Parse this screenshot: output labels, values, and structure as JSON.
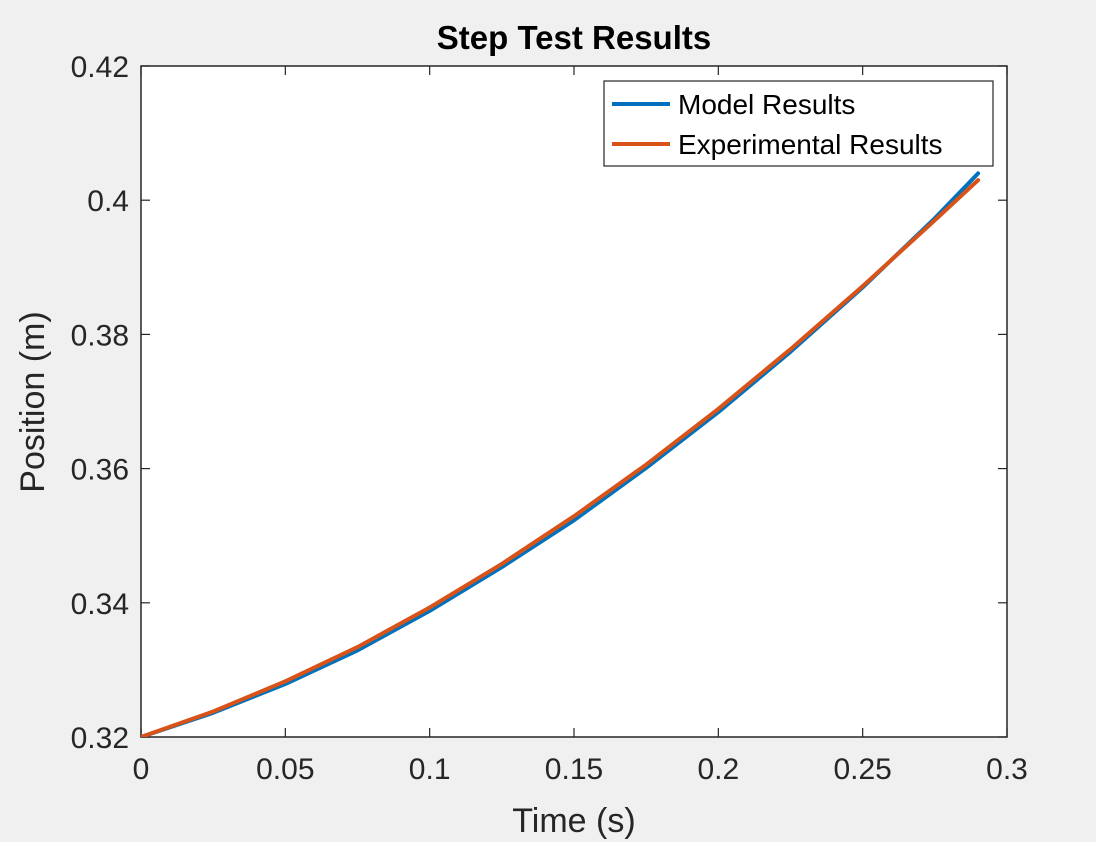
{
  "chart_data": {
    "type": "line",
    "title": "Step Test Results",
    "xlabel": "Time (s)",
    "ylabel": "Position (m)",
    "xlim": [
      0,
      0.3
    ],
    "ylim": [
      0.32,
      0.42
    ],
    "xticks": [
      0,
      0.05,
      0.1,
      0.15,
      0.2,
      0.25,
      0.3
    ],
    "yticks": [
      0.32,
      0.34,
      0.36,
      0.38,
      0.4,
      0.42
    ],
    "xtick_labels": [
      "0",
      "0.05",
      "0.1",
      "0.15",
      "0.2",
      "0.25",
      "0.3"
    ],
    "ytick_labels": [
      "0.32",
      "0.34",
      "0.36",
      "0.38",
      "0.4",
      "0.42"
    ],
    "grid": false,
    "legend_position": "top-right",
    "series": [
      {
        "name": "Model Results",
        "color": "#0072bd",
        "x": [
          0,
          0.025,
          0.05,
          0.075,
          0.1,
          0.125,
          0.15,
          0.175,
          0.2,
          0.225,
          0.25,
          0.275,
          0.29
        ],
        "y": [
          0.32,
          0.3236,
          0.3279,
          0.3329,
          0.3388,
          0.3453,
          0.3523,
          0.3601,
          0.3684,
          0.3774,
          0.387,
          0.3973,
          0.404
        ]
      },
      {
        "name": "Experimental Results",
        "color": "#d95319",
        "x": [
          0,
          0.025,
          0.05,
          0.075,
          0.1,
          0.125,
          0.15,
          0.175,
          0.2,
          0.225,
          0.25,
          0.275,
          0.29
        ],
        "y": [
          0.32,
          0.3238,
          0.3283,
          0.3334,
          0.3393,
          0.3458,
          0.3529,
          0.3606,
          0.3689,
          0.3778,
          0.3872,
          0.397,
          0.403
        ]
      }
    ]
  }
}
